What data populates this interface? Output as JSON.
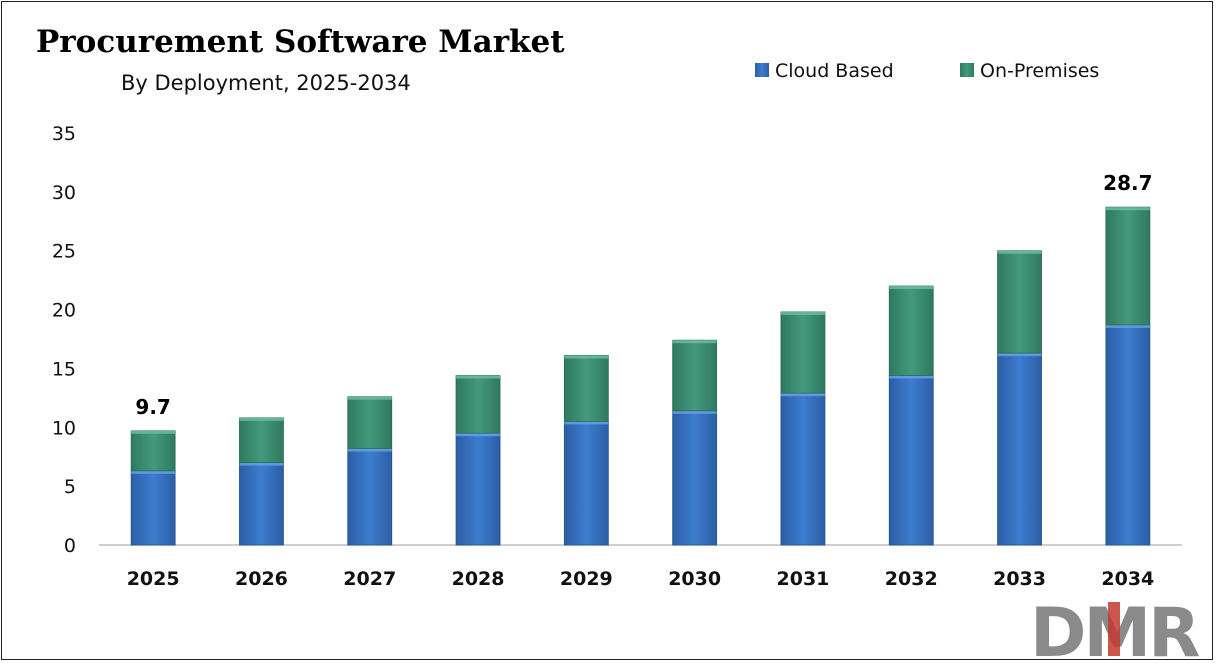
{
  "chart_data": {
    "type": "bar",
    "stacked": true,
    "title": "Procurement Software Market",
    "subtitle": "By Deployment, 2025-2034",
    "xlabel": "",
    "ylabel": "",
    "ylim": [
      0,
      35
    ],
    "yticks": [
      0,
      5,
      10,
      15,
      20,
      25,
      30,
      35
    ],
    "grid": false,
    "legend_position": "top-right",
    "categories": [
      "2025",
      "2026",
      "2027",
      "2028",
      "2029",
      "2030",
      "2031",
      "2032",
      "2033",
      "2034"
    ],
    "series": [
      {
        "name": "Cloud Based",
        "color": "#3a78c9",
        "values": [
          6.3,
          7.0,
          8.2,
          9.5,
          10.5,
          11.4,
          12.9,
          14.4,
          16.3,
          18.7
        ]
      },
      {
        "name": "On-Premises",
        "color": "#3f9478",
        "values": [
          3.4,
          3.8,
          4.4,
          4.9,
          5.6,
          6.0,
          6.9,
          7.6,
          8.7,
          10.0
        ]
      }
    ],
    "totals": [
      9.7,
      10.8,
      12.6,
      14.4,
      16.1,
      17.4,
      19.8,
      22.0,
      25.0,
      28.7
    ],
    "data_labels": [
      {
        "category": "2025",
        "text": "9.7"
      },
      {
        "category": "2034",
        "text": "28.7"
      }
    ]
  },
  "logo": {
    "text": "DMR"
  }
}
